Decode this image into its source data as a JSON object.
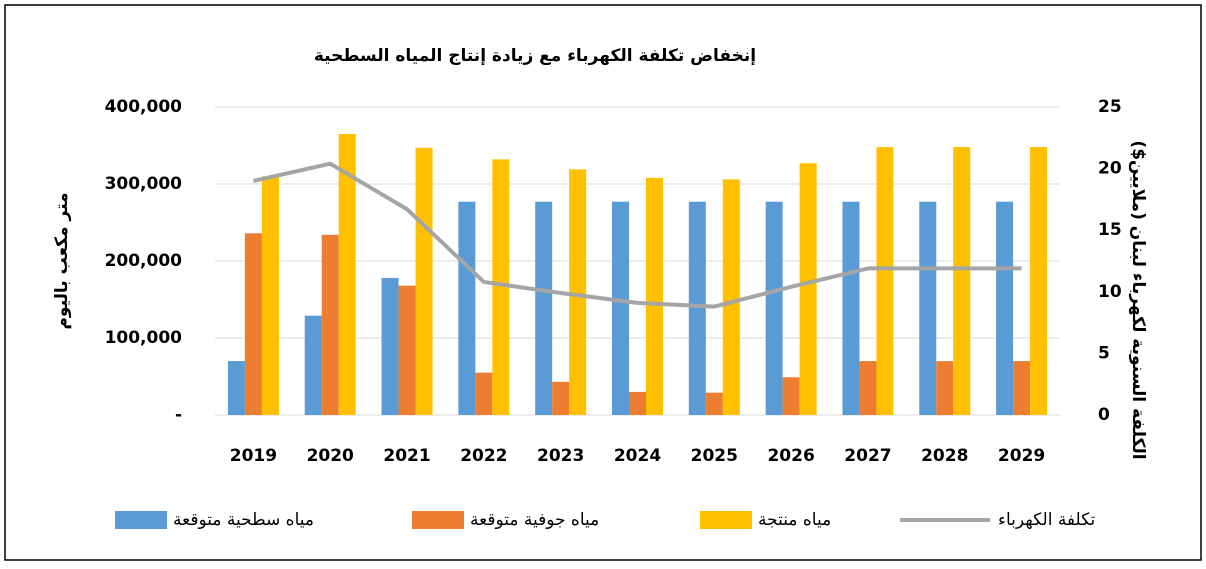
{
  "chart_data": {
    "type": "bar",
    "title": "إنخفاض تكلفة الكهرباء مع زيادة إنتاج المياه السطحية",
    "y_label": "متر مكعب باليوم",
    "y2_label": "الكلفة السنوية لكهرباء لبنان (ملايين$)",
    "categories": [
      "2019",
      "2020",
      "2021",
      "2022",
      "2023",
      "2024",
      "2025",
      "2026",
      "2027",
      "2028",
      "2029"
    ],
    "series": [
      {
        "name": "مياه سطحية متوقعة",
        "type": "bar",
        "color": "#5b9bd5",
        "values": [
          70000,
          129000,
          178000,
          277000,
          277000,
          277000,
          277000,
          277000,
          277000,
          277000,
          277000
        ]
      },
      {
        "name": "مياه جوفية متوقعة",
        "type": "bar",
        "color": "#ed7d31",
        "values": [
          236000,
          234000,
          168000,
          55000,
          43000,
          30000,
          29000,
          49000,
          70000,
          70000,
          70000
        ]
      },
      {
        "name": "مياه منتجة",
        "type": "bar",
        "color": "#ffc000",
        "values": [
          310000,
          365000,
          347000,
          332000,
          319000,
          308000,
          306000,
          327000,
          348000,
          348000,
          348000
        ]
      },
      {
        "name": "تكلفة الكهرباء",
        "type": "line",
        "axis": "y2",
        "color": "#a5a5a5",
        "values": [
          19.0,
          20.4,
          16.7,
          10.8,
          9.9,
          9.1,
          8.8,
          10.4,
          11.9,
          11.9,
          11.9
        ]
      }
    ],
    "ylim": [
      0,
      400000
    ],
    "yticks": [
      {
        "value": 0,
        "label": "-"
      },
      {
        "value": 100000,
        "label": "100,000"
      },
      {
        "value": 200000,
        "label": "200,000"
      },
      {
        "value": 300000,
        "label": "300,000"
      },
      {
        "value": 400000,
        "label": "400,000"
      }
    ],
    "y2lim": [
      0,
      25
    ],
    "y2ticks": [
      0,
      5,
      10,
      15,
      20,
      25
    ],
    "grid": true,
    "legend": "bottom"
  }
}
